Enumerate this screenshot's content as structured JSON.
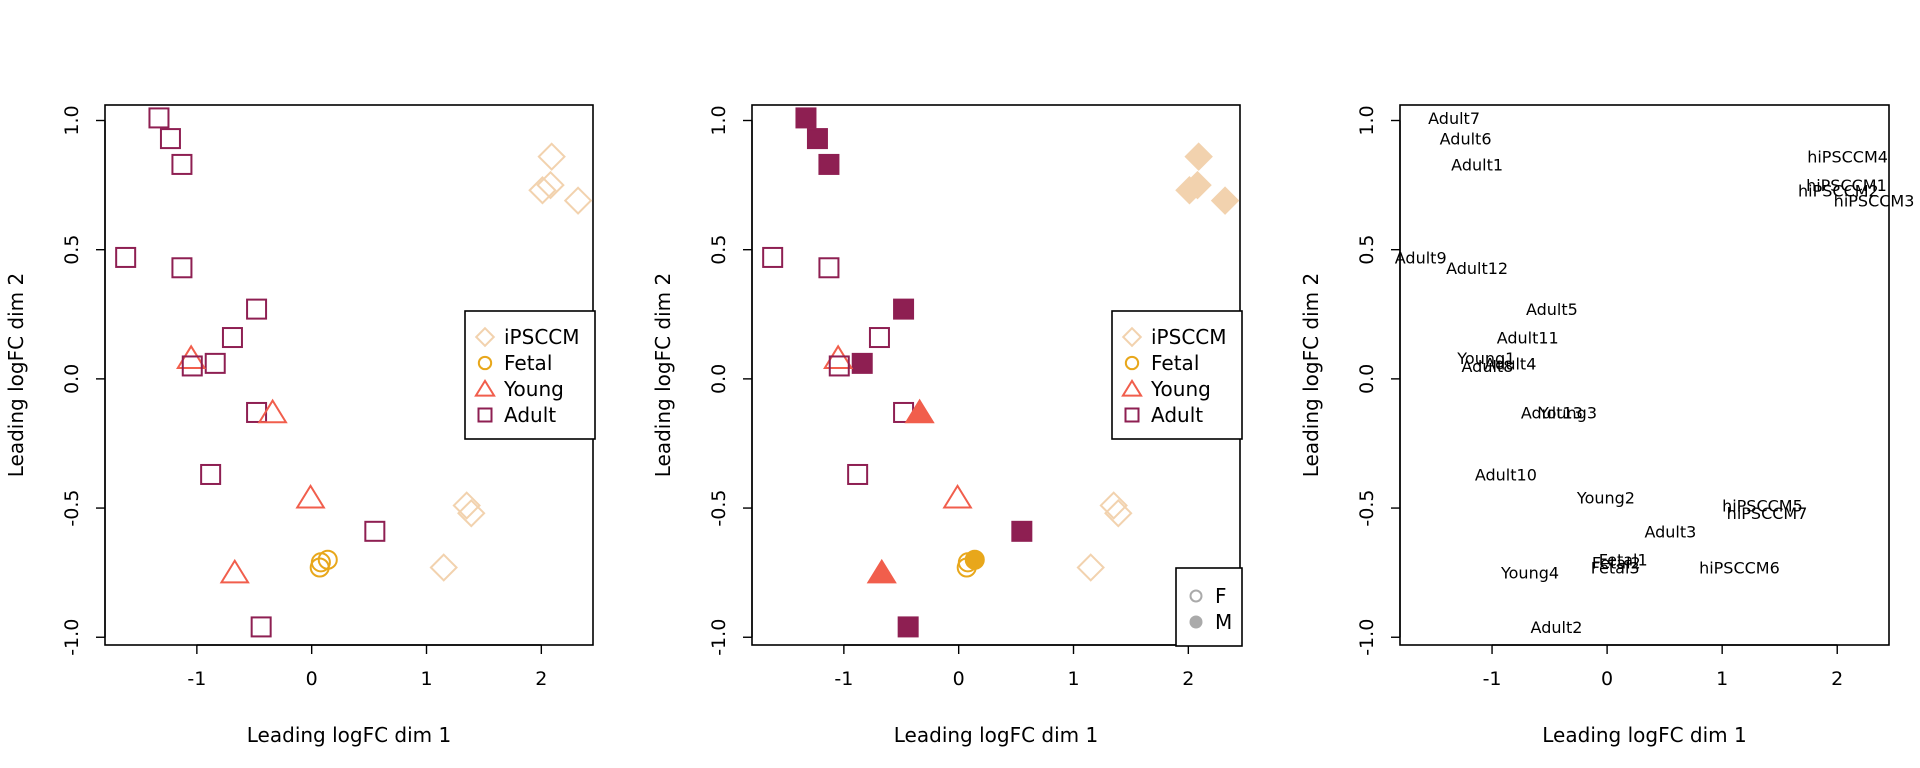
{
  "palette": {
    "iPSCCM": "#F2D2AE",
    "Fetal": "#E8A71B",
    "Young": "#F15E4C",
    "Adult": "#8E1F52",
    "sex_legend": "#AAAAAA"
  },
  "chart_data": [
    {
      "type": "scatter",
      "title": "",
      "xlabel": "Leading logFC dim 1",
      "ylabel": "Leading logFC dim 2",
      "xlim": [
        -1.8,
        2.45
      ],
      "ylim": [
        -1.03,
        1.06
      ],
      "xticks": [
        -1,
        0,
        1,
        2
      ],
      "yticks": [
        -1.0,
        -0.5,
        0.0,
        0.5,
        1.0
      ],
      "xtick_labels": [
        "-1",
        "0",
        "1",
        "2"
      ],
      "ytick_labels": [
        "-1.0",
        "-0.5",
        "0.0",
        "0.5",
        "1.0"
      ],
      "grid": false,
      "encoding": "group shape, hollow",
      "legend": {
        "position": "right",
        "entries": [
          {
            "label": "iPSCCM",
            "shape": "diamond",
            "color": "#F2D2AE"
          },
          {
            "label": "Fetal",
            "shape": "circle",
            "color": "#E8A71B"
          },
          {
            "label": "Young",
            "shape": "triangle",
            "color": "#F15E4C"
          },
          {
            "label": "Adult",
            "shape": "square",
            "color": "#8E1F52"
          }
        ]
      }
    },
    {
      "type": "scatter",
      "title": "",
      "xlabel": "Leading logFC dim 1",
      "ylabel": "Leading logFC dim 2",
      "xlim": [
        -1.8,
        2.45
      ],
      "ylim": [
        -1.03,
        1.06
      ],
      "xticks": [
        -1,
        0,
        1,
        2
      ],
      "yticks": [
        -1.0,
        -0.5,
        0.0,
        0.5,
        1.0
      ],
      "xtick_labels": [
        "-1",
        "0",
        "1",
        "2"
      ],
      "ytick_labels": [
        "-1.0",
        "-0.5",
        "0.0",
        "0.5",
        "1.0"
      ],
      "grid": false,
      "encoding": "group shape, filled = M, hollow = F",
      "legend": {
        "position": "right",
        "entries": [
          {
            "label": "iPSCCM",
            "shape": "diamond",
            "color": "#F2D2AE"
          },
          {
            "label": "Fetal",
            "shape": "circle",
            "color": "#E8A71B"
          },
          {
            "label": "Young",
            "shape": "triangle",
            "color": "#F15E4C"
          },
          {
            "label": "Adult",
            "shape": "square",
            "color": "#8E1F52"
          }
        ]
      },
      "legend2": {
        "position": "bottom-right",
        "entries": [
          {
            "label": "F",
            "fill": "hollow"
          },
          {
            "label": "M",
            "fill": "filled"
          }
        ]
      }
    },
    {
      "type": "scatter",
      "title": "",
      "xlabel": "Leading logFC dim 1",
      "ylabel": "Leading logFC dim 2",
      "xlim": [
        -1.8,
        2.45
      ],
      "ylim": [
        -1.03,
        1.06
      ],
      "xticks": [
        -1,
        0,
        1,
        2
      ],
      "yticks": [
        -1.0,
        -0.5,
        0.0,
        0.5,
        1.0
      ],
      "xtick_labels": [
        "-1",
        "0",
        "1",
        "2"
      ],
      "ytick_labels": [
        "-1.0",
        "-0.5",
        "0.0",
        "0.5",
        "1.0"
      ],
      "grid": false,
      "encoding": "sample name text labels"
    }
  ],
  "samples": [
    {
      "name": "Adult7",
      "group": "Adult",
      "sex": "M",
      "x": -1.33,
      "y": 1.01
    },
    {
      "name": "Adult6",
      "group": "Adult",
      "sex": "M",
      "x": -1.23,
      "y": 0.93
    },
    {
      "name": "Adult1",
      "group": "Adult",
      "sex": "M",
      "x": -1.13,
      "y": 0.83
    },
    {
      "name": "Adult9",
      "group": "Adult",
      "sex": "F",
      "x": -1.62,
      "y": 0.47
    },
    {
      "name": "Adult12",
      "group": "Adult",
      "sex": "F",
      "x": -1.13,
      "y": 0.43
    },
    {
      "name": "Adult5",
      "group": "Adult",
      "sex": "M",
      "x": -0.48,
      "y": 0.27
    },
    {
      "name": "Adult11",
      "group": "Adult",
      "sex": "F",
      "x": -0.69,
      "y": 0.16
    },
    {
      "name": "Adult4",
      "group": "Adult",
      "sex": "M",
      "x": -0.84,
      "y": 0.06
    },
    {
      "name": "Young1",
      "group": "Young",
      "sex": "F",
      "x": -1.05,
      "y": 0.08
    },
    {
      "name": "Adult8",
      "group": "Adult",
      "sex": "F",
      "x": -1.04,
      "y": 0.05
    },
    {
      "name": "Adult13",
      "group": "Adult",
      "sex": "F",
      "x": -0.48,
      "y": -0.13
    },
    {
      "name": "Young3",
      "group": "Young",
      "sex": "M",
      "x": -0.34,
      "y": -0.13
    },
    {
      "name": "Adult10",
      "group": "Adult",
      "sex": "F",
      "x": -0.88,
      "y": -0.37
    },
    {
      "name": "Young2",
      "group": "Young",
      "sex": "F",
      "x": -0.01,
      "y": -0.46
    },
    {
      "name": "Adult3",
      "group": "Adult",
      "sex": "M",
      "x": 0.55,
      "y": -0.59
    },
    {
      "name": "Young4",
      "group": "Young",
      "sex": "M",
      "x": -0.67,
      "y": -0.75
    },
    {
      "name": "Adult2",
      "group": "Adult",
      "sex": "M",
      "x": -0.44,
      "y": -0.96
    },
    {
      "name": "Fetal1",
      "group": "Fetal",
      "sex": "M",
      "x": 0.14,
      "y": -0.7
    },
    {
      "name": "Fetal2",
      "group": "Fetal",
      "sex": "F",
      "x": 0.08,
      "y": -0.71
    },
    {
      "name": "Fetal3",
      "group": "Fetal",
      "sex": "F",
      "x": 0.07,
      "y": -0.73
    },
    {
      "name": "hiPSCCM4",
      "group": "iPSCCM",
      "sex": "M",
      "x": 2.09,
      "y": 0.86
    },
    {
      "name": "hiPSCCM1",
      "group": "iPSCCM",
      "sex": "M",
      "x": 2.08,
      "y": 0.75
    },
    {
      "name": "hiPSCCM2",
      "group": "iPSCCM",
      "sex": "M",
      "x": 2.01,
      "y": 0.73
    },
    {
      "name": "hiPSCCM3",
      "group": "iPSCCM",
      "sex": "M",
      "x": 2.32,
      "y": 0.69
    },
    {
      "name": "hiPSCCM5",
      "group": "iPSCCM",
      "sex": "F",
      "x": 1.35,
      "y": -0.49
    },
    {
      "name": "hiPSCCM7",
      "group": "iPSCCM",
      "sex": "F",
      "x": 1.39,
      "y": -0.52
    },
    {
      "name": "hiPSCCM6",
      "group": "iPSCCM",
      "sex": "F",
      "x": 1.15,
      "y": -0.73
    }
  ]
}
